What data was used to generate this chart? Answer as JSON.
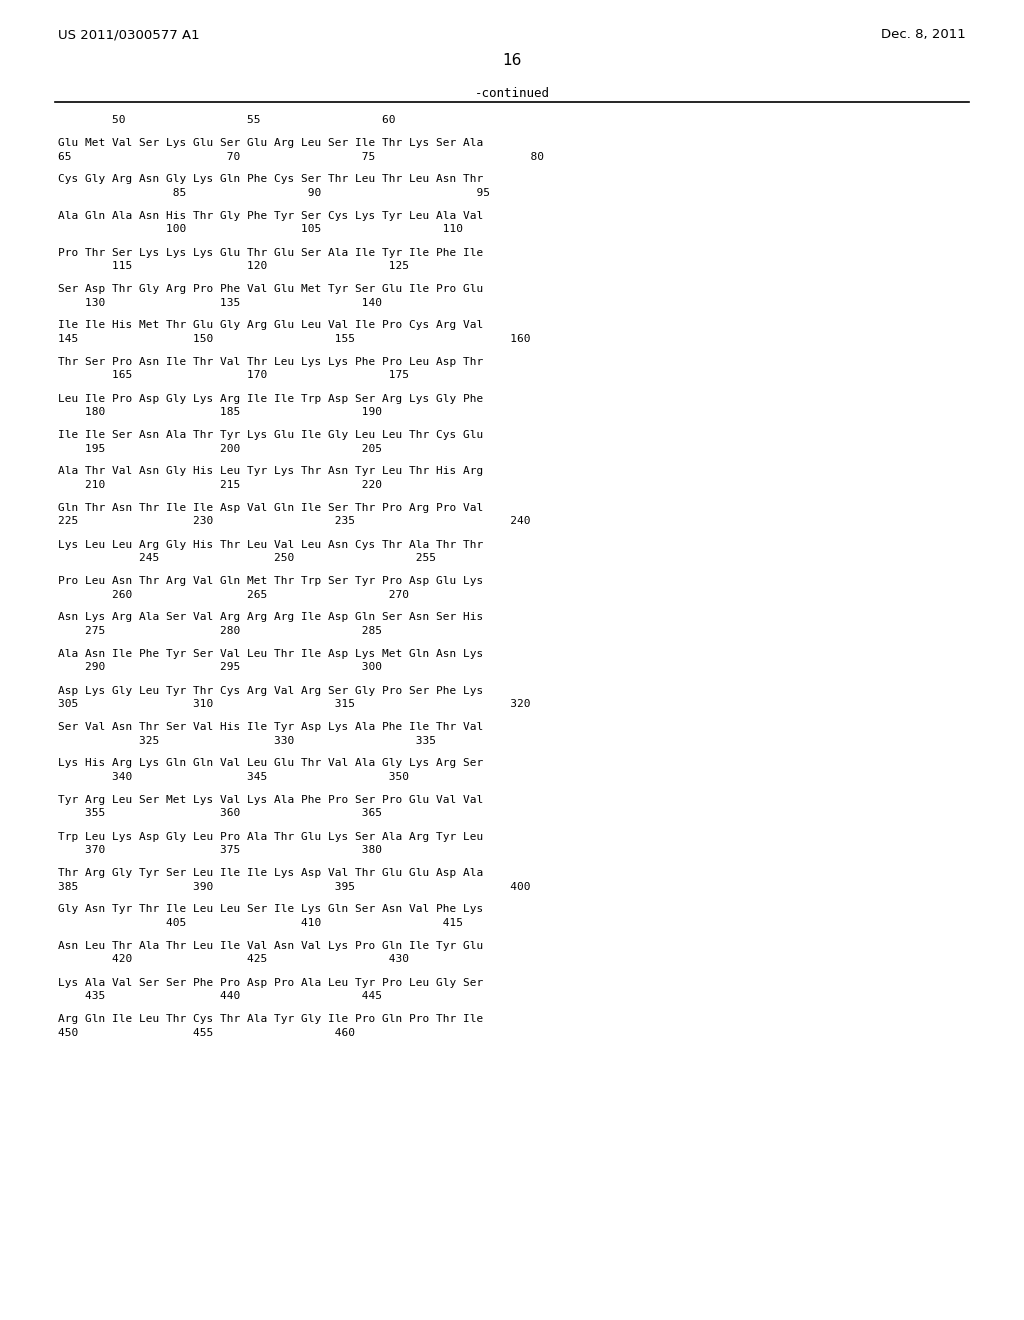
{
  "header_left": "US 2011/0300577 A1",
  "header_right": "Dec. 8, 2011",
  "page_number": "16",
  "continued_label": "-continued",
  "sequence_blocks": [
    {
      "seq": "Glu Met Val Ser Lys Glu Ser Glu Arg Leu Ser Ile Thr Lys Ser Ala",
      "num": "65                       70                  75                       80"
    },
    {
      "seq": "Cys Gly Arg Asn Gly Lys Gln Phe Cys Ser Thr Leu Thr Leu Asn Thr",
      "num": "                 85                  90                       95"
    },
    {
      "seq": "Ala Gln Ala Asn His Thr Gly Phe Tyr Ser Cys Lys Tyr Leu Ala Val",
      "num": "                100                 105                  110"
    },
    {
      "seq": "Pro Thr Ser Lys Lys Lys Glu Thr Glu Ser Ala Ile Tyr Ile Phe Ile",
      "num": "        115                 120                  125"
    },
    {
      "seq": "Ser Asp Thr Gly Arg Pro Phe Val Glu Met Tyr Ser Glu Ile Pro Glu",
      "num": "    130                 135                  140"
    },
    {
      "seq": "Ile Ile His Met Thr Glu Gly Arg Glu Leu Val Ile Pro Cys Arg Val",
      "num": "145                 150                  155                       160"
    },
    {
      "seq": "Thr Ser Pro Asn Ile Thr Val Thr Leu Lys Lys Phe Pro Leu Asp Thr",
      "num": "        165                 170                  175"
    },
    {
      "seq": "Leu Ile Pro Asp Gly Lys Arg Ile Ile Trp Asp Ser Arg Lys Gly Phe",
      "num": "    180                 185                  190"
    },
    {
      "seq": "Ile Ile Ser Asn Ala Thr Tyr Lys Glu Ile Gly Leu Leu Thr Cys Glu",
      "num": "    195                 200                  205"
    },
    {
      "seq": "Ala Thr Val Asn Gly His Leu Tyr Lys Thr Asn Tyr Leu Thr His Arg",
      "num": "    210                 215                  220"
    },
    {
      "seq": "Gln Thr Asn Thr Ile Ile Asp Val Gln Ile Ser Thr Pro Arg Pro Val",
      "num": "225                 230                  235                       240"
    },
    {
      "seq": "Lys Leu Leu Arg Gly His Thr Leu Val Leu Asn Cys Thr Ala Thr Thr",
      "num": "            245                 250                  255"
    },
    {
      "seq": "Pro Leu Asn Thr Arg Val Gln Met Thr Trp Ser Tyr Pro Asp Glu Lys",
      "num": "        260                 265                  270"
    },
    {
      "seq": "Asn Lys Arg Ala Ser Val Arg Arg Arg Ile Asp Gln Ser Asn Ser His",
      "num": "    275                 280                  285"
    },
    {
      "seq": "Ala Asn Ile Phe Tyr Ser Val Leu Thr Ile Asp Lys Met Gln Asn Lys",
      "num": "    290                 295                  300"
    },
    {
      "seq": "Asp Lys Gly Leu Tyr Thr Cys Arg Val Arg Ser Gly Pro Ser Phe Lys",
      "num": "305                 310                  315                       320"
    },
    {
      "seq": "Ser Val Asn Thr Ser Val His Ile Tyr Asp Lys Ala Phe Ile Thr Val",
      "num": "            325                 330                  335"
    },
    {
      "seq": "Lys His Arg Lys Gln Gln Val Leu Glu Thr Val Ala Gly Lys Arg Ser",
      "num": "        340                 345                  350"
    },
    {
      "seq": "Tyr Arg Leu Ser Met Lys Val Lys Ala Phe Pro Ser Pro Glu Val Val",
      "num": "    355                 360                  365"
    },
    {
      "seq": "Trp Leu Lys Asp Gly Leu Pro Ala Thr Glu Lys Ser Ala Arg Tyr Leu",
      "num": "    370                 375                  380"
    },
    {
      "seq": "Thr Arg Gly Tyr Ser Leu Ile Ile Lys Asp Val Thr Glu Glu Asp Ala",
      "num": "385                 390                  395                       400"
    },
    {
      "seq": "Gly Asn Tyr Thr Ile Leu Leu Ser Ile Lys Gln Ser Asn Val Phe Lys",
      "num": "                405                 410                  415"
    },
    {
      "seq": "Asn Leu Thr Ala Thr Leu Ile Val Asn Val Lys Pro Gln Ile Tyr Glu",
      "num": "        420                 425                  430"
    },
    {
      "seq": "Lys Ala Val Ser Ser Phe Pro Asp Pro Ala Leu Tyr Pro Leu Gly Ser",
      "num": "    435                 440                  445"
    },
    {
      "seq": "Arg Gln Ile Leu Thr Cys Thr Ala Tyr Gly Ile Pro Gln Pro Thr Ile",
      "num": "450                 455                  460"
    }
  ],
  "ruler": "        50                  55                  60"
}
